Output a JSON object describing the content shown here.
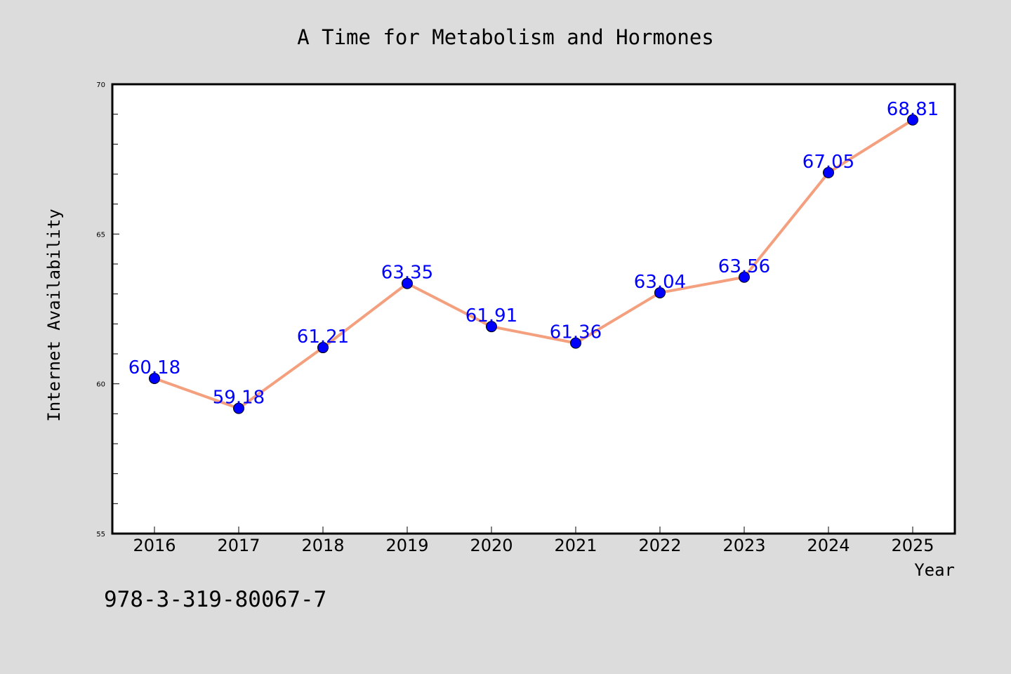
{
  "chart_data": {
    "type": "line",
    "title": "A Time for Metabolism and Hormones",
    "xlabel": "Year",
    "ylabel": "Internet Availability",
    "categories": [
      "2016",
      "2017",
      "2018",
      "2019",
      "2020",
      "2021",
      "2022",
      "2023",
      "2024",
      "2025"
    ],
    "series": [
      {
        "values": [
          60.18,
          59.18,
          61.21,
          63.35,
          61.91,
          61.36,
          63.04,
          63.56,
          67.05,
          68.81
        ],
        "data_labels": [
          "60.18",
          "59.18",
          "61.21",
          "63.35",
          "61.91",
          "61.36",
          "63.04",
          "63.56",
          "67.05",
          "68.81"
        ],
        "line_color": "#f4a07e",
        "marker_color": "#0000ff"
      }
    ],
    "ylim": [
      55,
      70
    ],
    "yticks": [
      "55",
      "60",
      "65",
      "70"
    ],
    "grid": false,
    "legend": "none"
  },
  "footer_text": "978-3-319-80067-7",
  "colors": {
    "background": "#dcdcdc",
    "plot_background": "#ffffff",
    "line": "#f4a07e",
    "marker": "#0000ff",
    "data_label": "#0000ff"
  }
}
